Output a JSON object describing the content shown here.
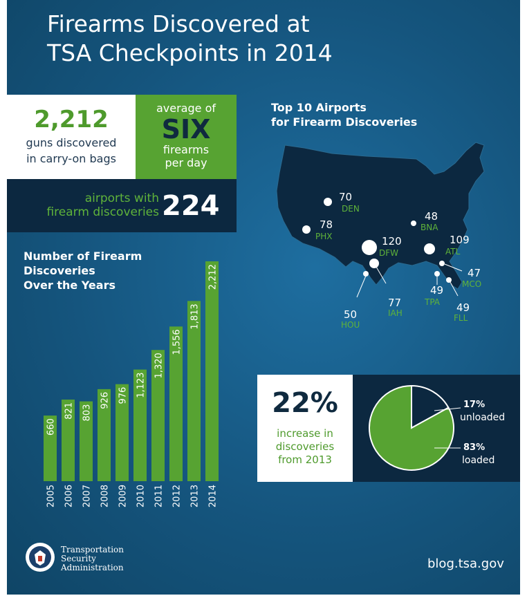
{
  "title": {
    "line1": "Firearms Discovered at",
    "line2": "TSA Checkpoints in 2014"
  },
  "stats": {
    "guns_number": "2,212",
    "guns_line1": "guns discovered",
    "guns_line2": "in carry-on bags",
    "avg_line1": "average of",
    "avg_big": "SIX",
    "avg_line2": "firearms",
    "avg_line3": "per day",
    "airports_line1": "airports with",
    "airports_line2": "firearm discoveries",
    "airports_number": "224"
  },
  "bar_chart_title": {
    "line1": "Number of Firearm",
    "line2": "Discoveries",
    "line3": "Over the Years"
  },
  "map_title": {
    "line1": "Top 10 Airports",
    "line2": "for Firearm Discoveries"
  },
  "colors": {
    "bar_green": "#57a332",
    "dark_navy": "#0c2840",
    "label_green": "#5fb33a"
  },
  "airports": [
    {
      "code": "DEN",
      "value": "70"
    },
    {
      "code": "PHX",
      "value": "78"
    },
    {
      "code": "DFW",
      "value": "120"
    },
    {
      "code": "BNA",
      "value": "48"
    },
    {
      "code": "ATL",
      "value": "109"
    },
    {
      "code": "MCO",
      "value": "47"
    },
    {
      "code": "TPA",
      "value": "49"
    },
    {
      "code": "FLL",
      "value": "49"
    },
    {
      "code": "IAH",
      "value": "77"
    },
    {
      "code": "HOU",
      "value": "50"
    }
  ],
  "increase": {
    "pct": "22%",
    "line1": "increase in",
    "line2": "discoveries",
    "line3": "from 2013"
  },
  "pie_labels": {
    "unloaded_pct": "17%",
    "unloaded": "unloaded",
    "loaded_pct": "83%",
    "loaded": "loaded"
  },
  "footer": {
    "agency_line1": "Transportation",
    "agency_line2": "Security",
    "agency_line3": "Administration",
    "url": "blog.tsa.gov"
  },
  "chart_data": [
    {
      "type": "bar",
      "title": "Number of Firearm Discoveries Over the Years",
      "categories": [
        "2005",
        "2006",
        "2007",
        "2008",
        "2009",
        "2010",
        "2011",
        "2012",
        "2013",
        "2014"
      ],
      "values": [
        660,
        821,
        803,
        926,
        976,
        1123,
        1320,
        1556,
        1813,
        2212
      ],
      "value_labels": [
        "660",
        "821",
        "803",
        "926",
        "976",
        "1,123",
        "1,320",
        "1,556",
        "1,813",
        "2,212"
      ],
      "ylim": [
        0,
        2212
      ]
    },
    {
      "type": "pie",
      "slices": [
        {
          "label": "unloaded",
          "value": 17
        },
        {
          "label": "loaded",
          "value": 83
        }
      ]
    }
  ]
}
